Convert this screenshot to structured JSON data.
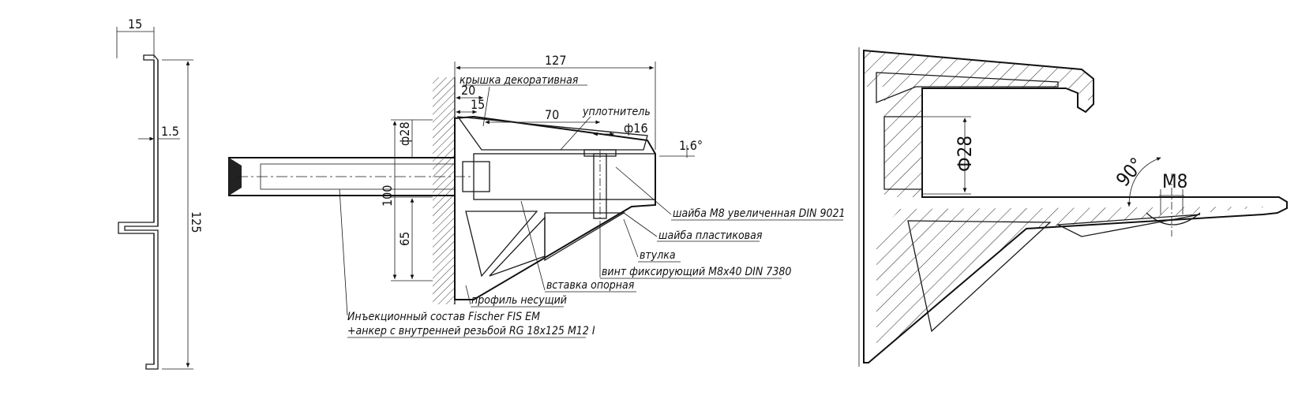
{
  "profile_view": {
    "dim_width": "15",
    "dim_thickness": "1.5",
    "dim_height": "125"
  },
  "assembly_view": {
    "dim_overall": "127",
    "dim_20": "20",
    "dim_15": "15",
    "dim_70": "70",
    "dim_d16": "ф16",
    "dim_d28": "ф28",
    "dim_100": "100",
    "dim_65": "65",
    "dim_angle": "1.6°",
    "labels": {
      "cover": "крышка декоративная",
      "seal": "уплотнитель",
      "washer_m8": "шайба М8 увеличенная DIN 9021",
      "washer_plastic": "шайба пластиковая",
      "bushing": "втулка",
      "screw": "винт фиксирующий М8х40 DIN 7380",
      "insert": "вставка опорная",
      "profile": "профиль несущий",
      "injection_1": "Инъекционный состав Fischer FIS EM",
      "injection_2": "+анкер с внутренней резьбой RG 18х125 M12 I"
    }
  },
  "section_view": {
    "dim_d28": "Ф28",
    "dim_angle": "90°",
    "dim_m8": "M8"
  }
}
